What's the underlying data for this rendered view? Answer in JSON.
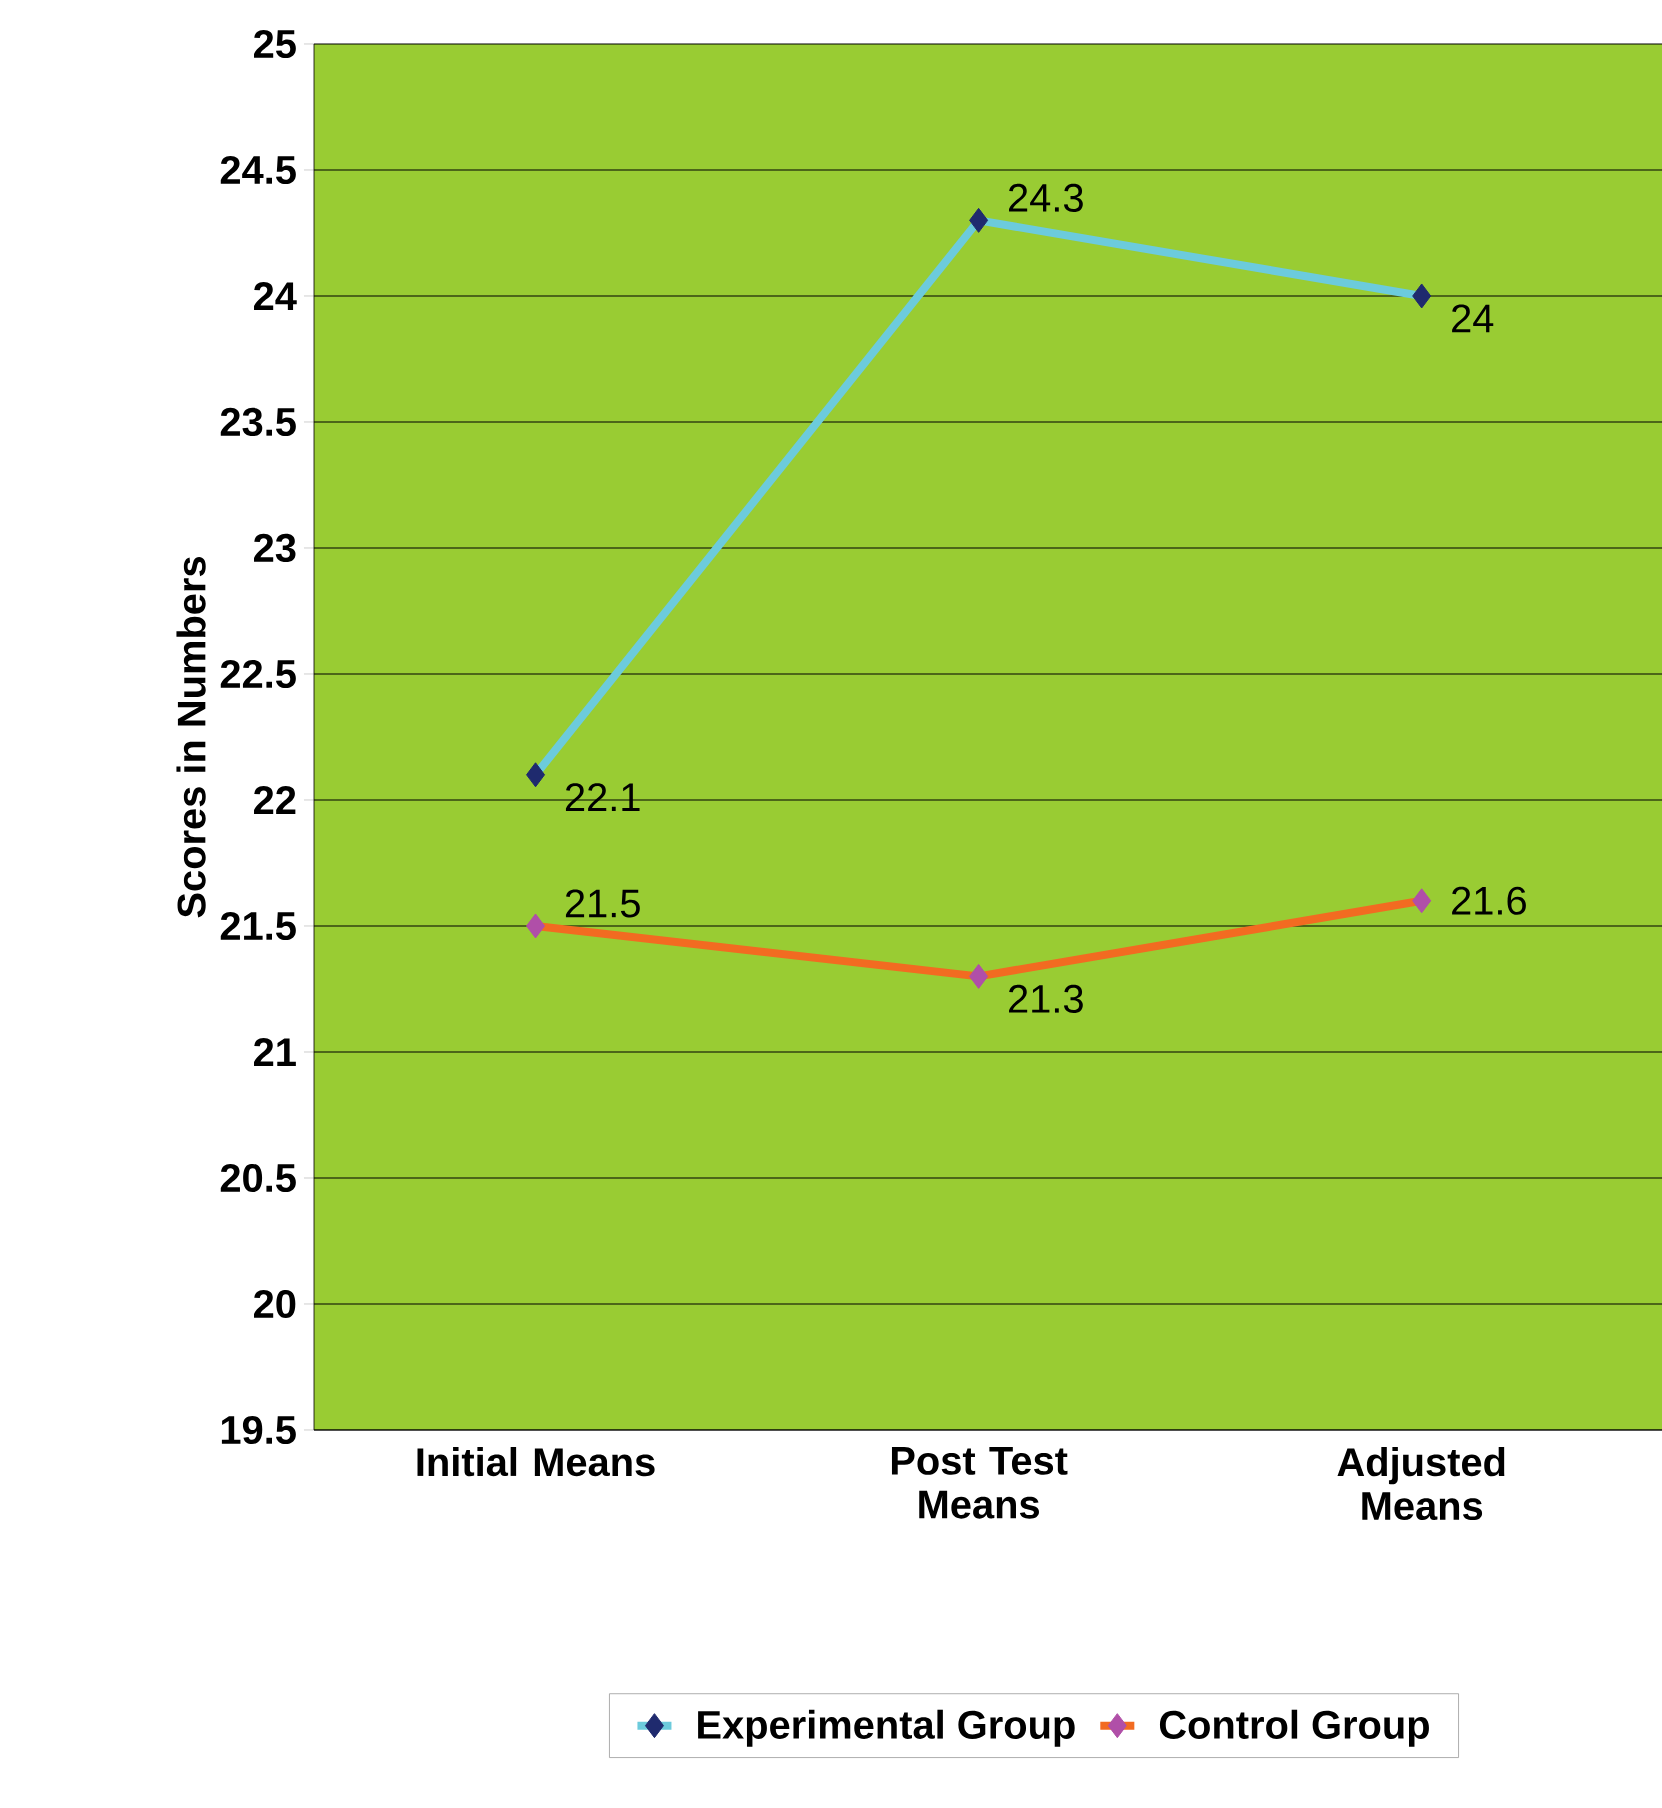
{
  "chart_data": {
    "type": "line",
    "ylabel": "Scores in Numbers",
    "categories": [
      "Initial Means",
      "Post Test Means",
      "Adjusted Means"
    ],
    "series": [
      {
        "name": "Experimental Group",
        "color": "#6ccbdc",
        "values": [
          22.1,
          24.3,
          24
        ]
      },
      {
        "name": "Control Group",
        "color": "#f26b21",
        "values": [
          21.5,
          21.3,
          21.6
        ]
      }
    ],
    "ylim": [
      19.5,
      25
    ],
    "yticks": [
      19.5,
      20,
      20.5,
      21,
      21.5,
      22,
      22.5,
      23,
      23.5,
      24,
      24.5,
      25
    ],
    "grid": "y",
    "legend": "bottom",
    "marker": "diamond",
    "line_style": "solid",
    "data_labels": true
  }
}
